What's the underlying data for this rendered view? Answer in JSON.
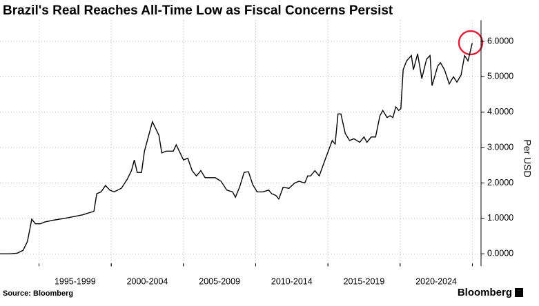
{
  "chart_data": {
    "type": "line",
    "title": "Brazil's Real Reaches All-Time Low as Fiscal Concerns Persist",
    "y_label": "Per USD",
    "source": "Source: Bloomberg",
    "brand": "Bloomberg",
    "xlim": [
      1992.3,
      2025.6
    ],
    "ylim": [
      -0.35,
      6.6
    ],
    "xticks": [
      {
        "value": 1997.5,
        "label": "1995-1999"
      },
      {
        "value": 2002.5,
        "label": "2000-2004"
      },
      {
        "value": 2007.5,
        "label": "2005-2009"
      },
      {
        "value": 2012.5,
        "label": "2010-2014"
      },
      {
        "value": 2017.5,
        "label": "2015-2019"
      },
      {
        "value": 2022.5,
        "label": "2020-2024"
      }
    ],
    "yticks": [
      {
        "value": 0,
        "label": "0.0000"
      },
      {
        "value": 1,
        "label": "1.0000"
      },
      {
        "value": 2,
        "label": "2.0000"
      },
      {
        "value": 3,
        "label": "3.0000"
      },
      {
        "value": 4,
        "label": "4.0000"
      },
      {
        "value": 5,
        "label": "5.0000"
      },
      {
        "value": 6,
        "label": "6.0000"
      }
    ],
    "grid": true,
    "series": [
      {
        "name": "BRL per USD",
        "color": "#000000",
        "x": [
          1992.3,
          1993.0,
          1993.5,
          1993.9,
          1994.2,
          1994.5,
          1994.75,
          1995.1,
          1995.4,
          1996.0,
          1997.0,
          1998.0,
          1998.8,
          1999.0,
          1999.3,
          1999.6,
          1999.9,
          2000.2,
          2000.7,
          2001.1,
          2001.4,
          2001.6,
          2001.8,
          2002.1,
          2002.3,
          2002.85,
          2003.3,
          2003.5,
          2003.8,
          2004.3,
          2004.5,
          2005.0,
          2005.3,
          2005.6,
          2005.9,
          2006.2,
          2006.5,
          2007.2,
          2007.6,
          2008.0,
          2008.4,
          2008.6,
          2008.9,
          2009.2,
          2009.5,
          2009.8,
          2010.1,
          2010.5,
          2010.9,
          2011.1,
          2011.4,
          2011.6,
          2011.9,
          2012.3,
          2012.7,
          2013.0,
          2013.4,
          2013.6,
          2013.8,
          2014.1,
          2014.4,
          2014.8,
          2015.3,
          2015.5,
          2015.7,
          2015.9,
          2016.2,
          2016.5,
          2016.8,
          2017.2,
          2017.5,
          2017.7,
          2018.0,
          2018.3,
          2018.6,
          2018.8,
          2019.1,
          2019.3,
          2019.5,
          2019.7,
          2019.9,
          2020.05,
          2020.21,
          2020.45,
          2020.78,
          2020.92,
          2021.21,
          2021.5,
          2021.83,
          2022.07,
          2022.21,
          2022.6,
          2022.79,
          2023.07,
          2023.4,
          2023.69,
          2023.93,
          2024.22,
          2024.46,
          2024.7,
          2024.99
        ],
        "values": [
          0.0,
          0.0,
          0.02,
          0.1,
          0.35,
          0.98,
          0.85,
          0.85,
          0.9,
          0.95,
          1.02,
          1.1,
          1.2,
          1.7,
          1.75,
          1.93,
          1.8,
          1.75,
          1.85,
          2.1,
          2.35,
          2.65,
          2.3,
          2.3,
          2.9,
          3.73,
          3.35,
          2.85,
          2.9,
          2.9,
          3.08,
          2.65,
          2.7,
          2.35,
          2.2,
          2.35,
          2.15,
          2.15,
          2.05,
          1.8,
          1.75,
          1.6,
          1.9,
          2.3,
          2.32,
          1.95,
          1.75,
          1.75,
          1.8,
          1.7,
          1.65,
          1.55,
          1.88,
          1.85,
          2.0,
          2.05,
          2.0,
          2.2,
          2.2,
          2.35,
          2.2,
          2.65,
          3.2,
          3.1,
          3.95,
          3.95,
          3.4,
          3.2,
          3.25,
          3.15,
          3.3,
          3.15,
          3.3,
          3.3,
          3.9,
          4.05,
          3.85,
          3.9,
          3.85,
          4.15,
          4.05,
          4.1,
          5.2,
          5.45,
          5.6,
          5.2,
          5.65,
          4.95,
          5.5,
          5.6,
          4.75,
          5.3,
          5.4,
          5.2,
          4.8,
          5.0,
          4.85,
          5.05,
          5.6,
          5.45,
          5.95
        ]
      }
    ]
  }
}
